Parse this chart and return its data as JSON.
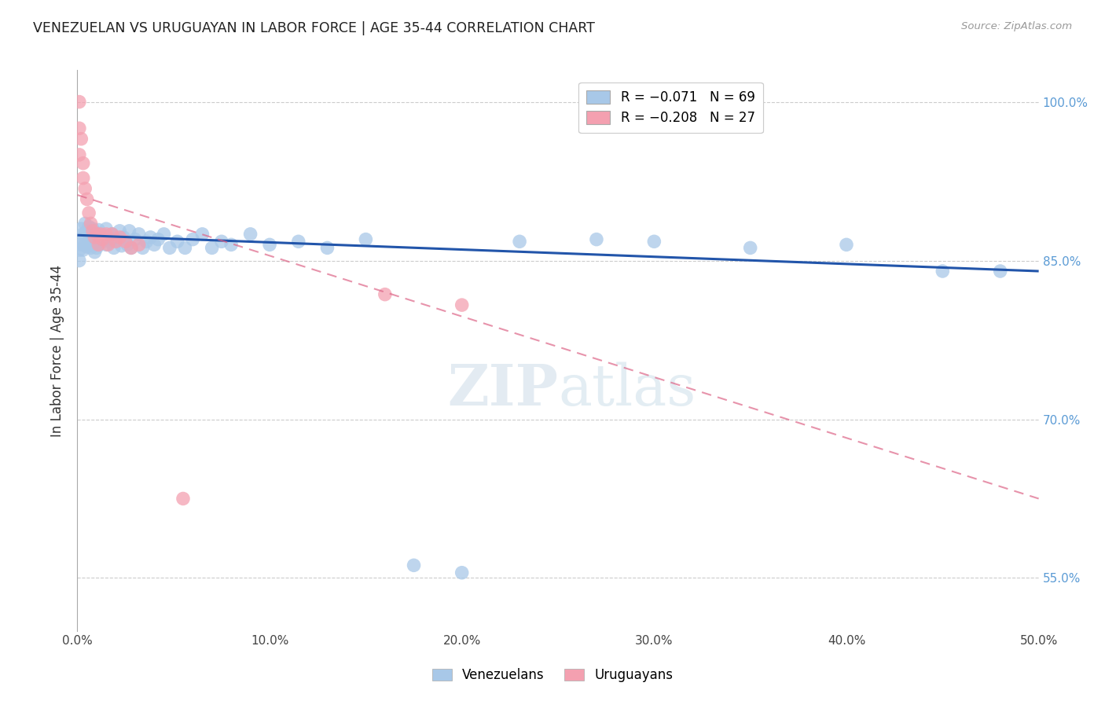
{
  "title": "VENEZUELAN VS URUGUAYAN IN LABOR FORCE | AGE 35-44 CORRELATION CHART",
  "source": "Source: ZipAtlas.com",
  "ylabel": "In Labor Force | Age 35-44",
  "xmin": 0.0,
  "xmax": 0.5,
  "ymin": 0.5,
  "ymax": 1.03,
  "yticks": [
    0.55,
    0.7,
    0.85,
    1.0
  ],
  "ytick_labels": [
    "55.0%",
    "70.0%",
    "85.0%",
    "100.0%"
  ],
  "xticks": [
    0.0,
    0.1,
    0.2,
    0.3,
    0.4,
    0.5
  ],
  "xtick_labels": [
    "0.0%",
    "10.0%",
    "20.0%",
    "30.0%",
    "40.0%",
    "50.0%"
  ],
  "legend_blue_label": "R = −0.071   N = 69",
  "legend_pink_label": "R = −0.208   N = 27",
  "legend_bottom_blue": "Venezuelans",
  "legend_bottom_pink": "Uruguayans",
  "blue_color": "#A8C8E8",
  "pink_color": "#F4A0B0",
  "blue_line_color": "#2255AA",
  "pink_line_color": "#DD6688",
  "venezuelan_x": [
    0.001,
    0.001,
    0.001,
    0.002,
    0.002,
    0.003,
    0.003,
    0.004,
    0.004,
    0.005,
    0.005,
    0.006,
    0.006,
    0.007,
    0.007,
    0.008,
    0.008,
    0.009,
    0.009,
    0.01,
    0.01,
    0.011,
    0.011,
    0.012,
    0.013,
    0.014,
    0.015,
    0.015,
    0.016,
    0.017,
    0.018,
    0.019,
    0.02,
    0.022,
    0.023,
    0.024,
    0.026,
    0.027,
    0.028,
    0.03,
    0.032,
    0.034,
    0.036,
    0.038,
    0.04,
    0.042,
    0.045,
    0.048,
    0.052,
    0.056,
    0.06,
    0.065,
    0.07,
    0.075,
    0.08,
    0.09,
    0.1,
    0.115,
    0.13,
    0.15,
    0.175,
    0.2,
    0.23,
    0.27,
    0.3,
    0.35,
    0.4,
    0.45,
    0.48
  ],
  "venezuelan_y": [
    0.87,
    0.86,
    0.85,
    0.88,
    0.865,
    0.875,
    0.86,
    0.885,
    0.865,
    0.878,
    0.863,
    0.882,
    0.868,
    0.875,
    0.862,
    0.88,
    0.865,
    0.872,
    0.858,
    0.876,
    0.862,
    0.879,
    0.865,
    0.872,
    0.868,
    0.874,
    0.88,
    0.865,
    0.872,
    0.868,
    0.875,
    0.862,
    0.87,
    0.878,
    0.864,
    0.872,
    0.865,
    0.878,
    0.862,
    0.87,
    0.875,
    0.862,
    0.868,
    0.872,
    0.865,
    0.87,
    0.875,
    0.862,
    0.868,
    0.862,
    0.87,
    0.875,
    0.862,
    0.868,
    0.865,
    0.875,
    0.865,
    0.868,
    0.862,
    0.87,
    0.562,
    0.555,
    0.868,
    0.87,
    0.868,
    0.862,
    0.865,
    0.84,
    0.84
  ],
  "uruguayan_x": [
    0.001,
    0.001,
    0.001,
    0.002,
    0.003,
    0.003,
    0.004,
    0.005,
    0.006,
    0.007,
    0.008,
    0.009,
    0.01,
    0.011,
    0.012,
    0.013,
    0.015,
    0.016,
    0.018,
    0.02,
    0.022,
    0.025,
    0.028,
    0.032,
    0.055,
    0.16,
    0.2
  ],
  "uruguayan_y": [
    1.0,
    0.975,
    0.95,
    0.965,
    0.942,
    0.928,
    0.918,
    0.908,
    0.895,
    0.885,
    0.878,
    0.872,
    0.875,
    0.865,
    0.875,
    0.87,
    0.875,
    0.865,
    0.875,
    0.868,
    0.872,
    0.868,
    0.862,
    0.865,
    0.625,
    0.818,
    0.808
  ],
  "blue_trend_x": [
    0.0,
    0.5
  ],
  "blue_trend_y": [
    0.874,
    0.84
  ],
  "pink_trend_x": [
    0.0,
    0.5
  ],
  "pink_trend_y": [
    0.912,
    0.625
  ]
}
